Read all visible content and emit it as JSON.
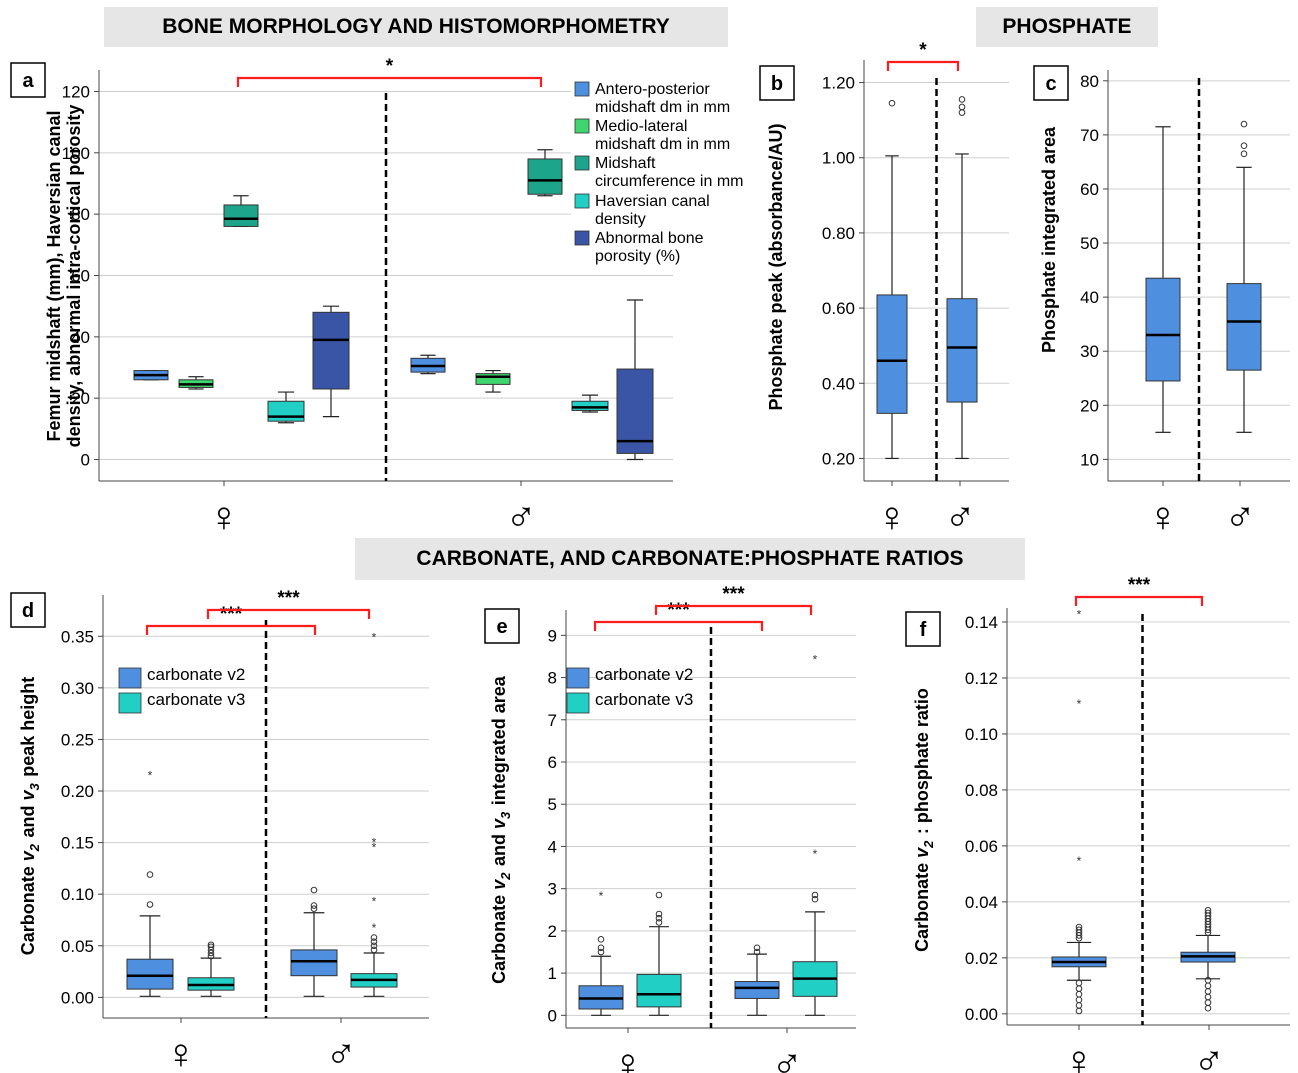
{
  "sections": {
    "bone": "BONE MORPHOLOGY AND HISTOMORPHOMETRY",
    "phosphate": "PHOSPHATE",
    "carbonate": "CARBONATE, AND CARBONATE:PHOSPHATE RATIOS"
  },
  "colors": {
    "blue": "#4f8fe0",
    "green": "#3fd66f",
    "teal": "#1ca58a",
    "cyan": "#22cfc5",
    "navy": "#3b55a6",
    "sig_bracket": "#ff1c1c"
  },
  "chart_data": [
    {
      "panel": "a",
      "type": "box",
      "ylabel": "Femur midshaft (mm), Haversian canal density, abnormal intra-cortical porosity",
      "ylim": [
        -7,
        127
      ],
      "yticks": [
        0,
        20,
        40,
        60,
        80,
        100,
        120
      ],
      "groups": [
        "♀",
        "♂"
      ],
      "grid": true,
      "legend_position": "top-right",
      "series": [
        {
          "name": "Antero-posterior midshaft dm in mm",
          "color_key": "blue",
          "boxes": [
            {
              "min": 26,
              "q1": 26,
              "median": 27.5,
              "q3": 29,
              "max": 29
            },
            {
              "min": 28,
              "q1": 28.5,
              "median": 30.5,
              "q3": 33,
              "max": 34
            }
          ]
        },
        {
          "name": "Medio-lateral midshaft dm in mm",
          "color_key": "green",
          "boxes": [
            {
              "min": 23,
              "q1": 23.5,
              "median": 24.5,
              "q3": 26,
              "max": 27
            },
            {
              "min": 22,
              "q1": 24.5,
              "median": 27,
              "q3": 28,
              "max": 29
            }
          ]
        },
        {
          "name": "Midshaft circumference in mm",
          "color_key": "teal",
          "boxes": [
            {
              "min": 76,
              "q1": 76,
              "median": 78.5,
              "q3": 83,
              "max": 86
            },
            {
              "min": 86,
              "q1": 86.5,
              "median": 91,
              "q3": 98,
              "max": 101
            }
          ]
        },
        {
          "name": "Haversian canal density",
          "color_key": "cyan",
          "boxes": [
            {
              "min": 12,
              "q1": 12.5,
              "median": 14,
              "q3": 19,
              "max": 22
            },
            {
              "min": 15.5,
              "q1": 16,
              "median": 17,
              "q3": 19,
              "max": 21
            }
          ]
        },
        {
          "name": "Abnormal bone porosity (%)",
          "color_key": "navy",
          "boxes": [
            {
              "min": 14,
              "q1": 23,
              "median": 39,
              "q3": 48,
              "max": 50
            },
            {
              "min": 0,
              "q1": 2,
              "median": 6,
              "q3": 29.5,
              "max": 52
            }
          ]
        }
      ],
      "significance": [
        {
          "label": "*"
        }
      ]
    },
    {
      "panel": "b",
      "type": "box",
      "ylabel": "Phosphate peak (absorbance/AU)",
      "ylim": [
        0.14,
        1.26
      ],
      "yticks": [
        "0.20",
        "0.40",
        "0.60",
        "0.80",
        "1.00",
        "1.20"
      ],
      "groups": [
        "♀",
        "♂"
      ],
      "boxes": [
        {
          "min": 0.2,
          "q1": 0.32,
          "median": 0.46,
          "q3": 0.635,
          "max": 1.005,
          "outliers": [
            1.145
          ]
        },
        {
          "min": 0.2,
          "q1": 0.35,
          "median": 0.495,
          "q3": 0.625,
          "max": 1.01,
          "outliers": [
            1.12,
            1.135,
            1.155
          ]
        }
      ],
      "significance": [
        {
          "label": "*"
        }
      ]
    },
    {
      "panel": "c",
      "type": "box",
      "ylabel": "Phosphate integrated area",
      "ylim": [
        6,
        82
      ],
      "yticks": [
        10,
        20,
        30,
        40,
        50,
        60,
        70,
        80
      ],
      "groups": [
        "♀",
        "♂"
      ],
      "boxes": [
        {
          "min": 15,
          "q1": 24.5,
          "median": 33,
          "q3": 43.5,
          "max": 71.5
        },
        {
          "min": 15,
          "q1": 26.5,
          "median": 35.5,
          "q3": 42.5,
          "max": 64,
          "outliers": [
            66.5,
            68,
            72
          ]
        }
      ]
    },
    {
      "panel": "d",
      "type": "box",
      "ylabel": "Carbonate v2 and v3 peak height",
      "ylim": [
        -0.02,
        0.39
      ],
      "yticks": [
        "0.00",
        "0.05",
        "0.10",
        "0.15",
        "0.20",
        "0.25",
        "0.30",
        "0.35"
      ],
      "groups": [
        "♀",
        "♂"
      ],
      "series": [
        {
          "name": "carbonate v2",
          "color_key": "blue",
          "boxes": [
            {
              "min": 0.001,
              "q1": 0.008,
              "median": 0.021,
              "q3": 0.037,
              "max": 0.079,
              "outliers": [
                0.09,
                0.119
              ],
              "extremes": [
                0.216
              ]
            },
            {
              "min": 0.001,
              "q1": 0.021,
              "median": 0.035,
              "q3": 0.046,
              "max": 0.082,
              "outliers": [
                0.086,
                0.089,
                0.104
              ]
            }
          ]
        },
        {
          "name": "carbonate v3",
          "color_key": "cyan",
          "boxes": [
            {
              "min": 0.001,
              "q1": 0.007,
              "median": 0.012,
              "q3": 0.019,
              "max": 0.038,
              "outliers": [
                0.04,
                0.043,
                0.046,
                0.049,
                0.051
              ]
            },
            {
              "min": 0.001,
              "q1": 0.01,
              "median": 0.017,
              "q3": 0.023,
              "max": 0.043,
              "outliers": [
                0.046,
                0.05,
                0.054,
                0.058
              ],
              "extremes": [
                0.068,
                0.094,
                0.146,
                0.151,
                0.35
              ]
            }
          ]
        }
      ],
      "significance": [
        {
          "label": "***"
        },
        {
          "label": "***"
        }
      ]
    },
    {
      "panel": "e",
      "type": "box",
      "ylabel": "Carbonate v2 and v3 integrated area",
      "ylim": [
        -0.3,
        9.6
      ],
      "yticks": [
        0,
        1,
        2,
        3,
        4,
        5,
        6,
        7,
        8,
        9
      ],
      "groups": [
        "♀",
        "♂"
      ],
      "series": [
        {
          "name": "carbonate v2",
          "color_key": "blue",
          "boxes": [
            {
              "min": 0,
              "q1": 0.15,
              "median": 0.4,
              "q3": 0.7,
              "max": 1.4,
              "outliers": [
                1.5,
                1.6,
                1.8
              ],
              "extremes": [
                2.85
              ]
            },
            {
              "min": 0,
              "q1": 0.4,
              "median": 0.65,
              "q3": 0.8,
              "max": 1.45,
              "outliers": [
                1.5,
                1.6
              ]
            }
          ]
        },
        {
          "name": "carbonate v3",
          "color_key": "cyan",
          "boxes": [
            {
              "min": 0,
              "q1": 0.2,
              "median": 0.5,
              "q3": 0.97,
              "max": 2.1,
              "outliers": [
                2.2,
                2.3,
                2.4,
                2.85
              ]
            },
            {
              "min": 0,
              "q1": 0.45,
              "median": 0.87,
              "q3": 1.27,
              "max": 2.45,
              "outliers": [
                2.75,
                2.85
              ],
              "extremes": [
                3.85,
                8.45
              ]
            }
          ]
        }
      ],
      "significance": [
        {
          "label": "***"
        },
        {
          "label": "***"
        }
      ]
    },
    {
      "panel": "f",
      "type": "box",
      "ylabel": "Carbonate v2 : phosphate ratio",
      "ylim": [
        -0.004,
        0.145
      ],
      "yticks": [
        "0.00",
        "0.02",
        "0.04",
        "0.06",
        "0.08",
        "0.10",
        "0.12",
        "0.14"
      ],
      "groups": [
        "♀",
        "♂"
      ],
      "boxes": [
        {
          "min": 0.012,
          "q1": 0.0168,
          "median": 0.0185,
          "q3": 0.0203,
          "max": 0.0255,
          "outliers": [
            0.001,
            0.003,
            0.005,
            0.007,
            0.009,
            0.011,
            0.027,
            0.028,
            0.029,
            0.03,
            0.031
          ],
          "extremes": [
            0.055,
            0.111,
            0.143
          ]
        },
        {
          "min": 0.0125,
          "q1": 0.0185,
          "median": 0.0205,
          "q3": 0.022,
          "max": 0.028,
          "outliers": [
            0.002,
            0.004,
            0.006,
            0.008,
            0.01,
            0.012,
            0.029,
            0.03,
            0.031,
            0.032,
            0.033,
            0.034,
            0.035,
            0.036,
            0.037
          ]
        }
      ],
      "significance": [
        {
          "label": "***"
        }
      ]
    }
  ]
}
